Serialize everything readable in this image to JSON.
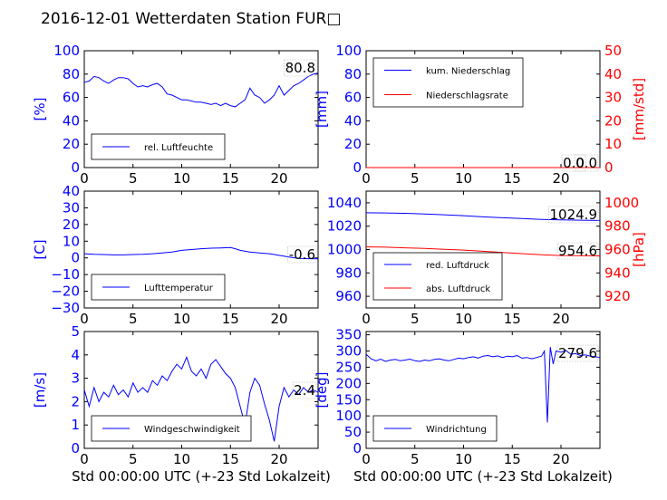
{
  "title": "2016-12-01 Wetterdaten Station FUR□",
  "colors": {
    "primary": "#0000ff",
    "secondary": "#ff0000",
    "axis": "#000000"
  },
  "chart_data": [
    {
      "type": "line",
      "panel": "humidity",
      "ylabel": "[%]",
      "xlim": [
        0,
        24
      ],
      "ylim": [
        0,
        100
      ],
      "xticks": [
        "0",
        "5",
        "10",
        "15",
        "20"
      ],
      "yticks": [
        "0",
        "20",
        "40",
        "60",
        "80",
        "100"
      ],
      "xtick_values": [
        0,
        5,
        10,
        15,
        20
      ],
      "ytick_values": [
        0,
        20,
        40,
        60,
        80,
        100
      ],
      "grid": false,
      "legend_position": "lower-left",
      "annotation": "80.8",
      "series": [
        {
          "name": "rel. Luftfeuchte",
          "axis": "left",
          "color": "#0000ff",
          "x": [
            0,
            0.5,
            1,
            1.5,
            2,
            2.5,
            3,
            3.5,
            4,
            4.5,
            5,
            5.5,
            6,
            6.5,
            7,
            7.5,
            8,
            8.5,
            9,
            9.5,
            10,
            10.5,
            11,
            11.5,
            12,
            12.5,
            13,
            13.5,
            14,
            14.5,
            15,
            15.5,
            16,
            16.5,
            17,
            17.5,
            18,
            18.5,
            19,
            19.5,
            20,
            20.5,
            21,
            21.5,
            22,
            22.5,
            23,
            23.5,
            24
          ],
          "values": [
            73,
            74,
            78,
            77,
            74,
            72,
            75,
            77,
            77,
            76,
            72,
            69,
            70,
            69,
            71,
            72,
            69,
            63,
            62,
            60,
            58,
            58,
            57,
            56,
            56,
            55,
            54,
            55,
            53,
            55,
            53,
            52,
            55,
            58,
            68,
            62,
            60,
            55,
            58,
            62,
            70,
            62,
            66,
            70,
            72,
            75,
            78,
            80,
            80.8
          ]
        }
      ]
    },
    {
      "type": "line",
      "panel": "precipitation",
      "ylabel": "[mm]",
      "ylabel_right": "[mm/std]",
      "xlim": [
        0,
        24
      ],
      "ylim": [
        0,
        100
      ],
      "ylim_right": [
        0,
        50
      ],
      "xticks": [
        "0",
        "5",
        "10",
        "15",
        "20"
      ],
      "yticks": [
        "0",
        "20",
        "40",
        "60",
        "80",
        "100"
      ],
      "yticks_right": [
        "0",
        "10",
        "20",
        "30",
        "40",
        "50"
      ],
      "xtick_values": [
        0,
        5,
        10,
        15,
        20
      ],
      "ytick_values": [
        0,
        20,
        40,
        60,
        80,
        100
      ],
      "ytick_values_right": [
        0,
        10,
        20,
        30,
        40,
        50
      ],
      "grid": false,
      "legend_position": "upper-left",
      "annotation": "0.0",
      "annotation_2": "0.0",
      "series": [
        {
          "name": "kum. Niederschlag",
          "axis": "left",
          "color": "#0000ff",
          "x": [
            0,
            24
          ],
          "values": [
            0,
            0
          ]
        },
        {
          "name": "Niederschlagsrate",
          "axis": "right",
          "color": "#ff0000",
          "x": [
            0,
            24
          ],
          "values": [
            0,
            0
          ]
        }
      ]
    },
    {
      "type": "line",
      "panel": "temperature",
      "ylabel": "[C]",
      "xlim": [
        0,
        24
      ],
      "ylim": [
        -30,
        40
      ],
      "xticks": [
        "0",
        "5",
        "10",
        "15",
        "20"
      ],
      "yticks": [
        "−30",
        "−20",
        "−10",
        "0",
        "10",
        "20",
        "30",
        "40"
      ],
      "xtick_values": [
        0,
        5,
        10,
        15,
        20
      ],
      "ytick_values": [
        -30,
        -20,
        -10,
        0,
        10,
        20,
        30,
        40
      ],
      "grid": false,
      "legend_position": "lower-left",
      "annotation": "-0.6",
      "series": [
        {
          "name": "Lufttemperatur",
          "axis": "left",
          "color": "#0000ff",
          "x": [
            0,
            1,
            2,
            3,
            4,
            5,
            6,
            7,
            8,
            9,
            10,
            11,
            12,
            13,
            14,
            15,
            15.5,
            16,
            17,
            18,
            19,
            20,
            21,
            22,
            23,
            24
          ],
          "values": [
            2.5,
            2.2,
            2.0,
            1.8,
            1.8,
            2.0,
            2.2,
            2.5,
            3.0,
            3.5,
            4.5,
            5.0,
            5.5,
            5.8,
            6.0,
            6.2,
            5.5,
            4.5,
            3.5,
            3.0,
            2.5,
            1.5,
            0.5,
            -0.3,
            -0.5,
            -0.6
          ]
        }
      ]
    },
    {
      "type": "line",
      "panel": "pressure",
      "ylabel_right": "[hPa]",
      "xlim": [
        0,
        24
      ],
      "ylim": [
        950,
        1050
      ],
      "ylim_right": [
        910,
        1010
      ],
      "xticks": [
        "0",
        "5",
        "10",
        "15",
        "20"
      ],
      "yticks": [
        "960",
        "980",
        "1000",
        "1020",
        "1040"
      ],
      "yticks_right": [
        "920",
        "940",
        "960",
        "980",
        "1000"
      ],
      "xtick_values": [
        0,
        5,
        10,
        15,
        20
      ],
      "ytick_values": [
        960,
        980,
        1000,
        1020,
        1040
      ],
      "ytick_values_right": [
        920,
        940,
        960,
        980,
        1000
      ],
      "grid": false,
      "legend_position": "lower-left",
      "annotation": "1024.9",
      "annotation_2": "954.6",
      "series": [
        {
          "name": "red. Luftdruck",
          "axis": "left",
          "color": "#0000ff",
          "x": [
            0,
            2,
            4,
            6,
            8,
            10,
            12,
            14,
            16,
            18,
            20,
            22,
            24
          ],
          "values": [
            1031.5,
            1031.3,
            1031.0,
            1030.5,
            1029.8,
            1029.0,
            1028.0,
            1027.2,
            1026.5,
            1025.8,
            1025.4,
            1025.1,
            1024.9
          ]
        },
        {
          "name": "abs. Luftdruck",
          "axis": "right",
          "color": "#ff0000",
          "x": [
            0,
            2,
            4,
            6,
            8,
            10,
            12,
            14,
            16,
            18,
            20,
            22,
            24
          ],
          "values": [
            962.3,
            962.0,
            961.5,
            961.0,
            960.2,
            959.5,
            958.5,
            957.5,
            956.5,
            955.5,
            954.9,
            954.7,
            954.6
          ]
        }
      ]
    },
    {
      "type": "line",
      "panel": "wind-speed",
      "ylabel": "[m/s]",
      "xlabel": "Std 00:00:00 UTC (+-23 Std Lokalzeit)",
      "xlim": [
        0,
        24
      ],
      "ylim": [
        0,
        5
      ],
      "xticks": [
        "0",
        "5",
        "10",
        "15",
        "20"
      ],
      "yticks": [
        "0",
        "1",
        "2",
        "3",
        "4",
        "5"
      ],
      "xtick_values": [
        0,
        5,
        10,
        15,
        20
      ],
      "ytick_values": [
        0,
        1,
        2,
        3,
        4,
        5
      ],
      "grid": false,
      "legend_position": "lower-left",
      "annotation": "2.4",
      "series": [
        {
          "name": "Windgeschwindigkeit",
          "axis": "left",
          "color": "#0000ff",
          "x": [
            0,
            0.5,
            1,
            1.5,
            2,
            2.5,
            3,
            3.5,
            4,
            4.5,
            5,
            5.5,
            6,
            6.5,
            7,
            7.5,
            8,
            8.5,
            9,
            9.5,
            10,
            10.5,
            11,
            11.5,
            12,
            12.5,
            13,
            13.5,
            14,
            14.5,
            15,
            15.5,
            16,
            16.5,
            17,
            17.5,
            18,
            18.5,
            19,
            19.5,
            20,
            20.5,
            21,
            21.5,
            22,
            22.5,
            23,
            23.5,
            24
          ],
          "values": [
            2.5,
            1.8,
            2.6,
            2.0,
            2.4,
            2.2,
            2.7,
            2.3,
            2.5,
            2.2,
            2.8,
            2.4,
            2.6,
            2.4,
            2.9,
            2.7,
            3.1,
            2.9,
            3.3,
            3.6,
            3.4,
            3.9,
            3.3,
            3.1,
            3.4,
            3.0,
            3.6,
            3.8,
            3.5,
            3.2,
            3.0,
            2.6,
            1.8,
            1.0,
            2.4,
            3.0,
            2.7,
            1.9,
            1.2,
            0.3,
            1.8,
            2.6,
            2.2,
            2.5,
            2.3,
            2.6,
            2.4,
            2.5,
            2.4
          ]
        }
      ]
    },
    {
      "type": "line",
      "panel": "wind-direction",
      "ylabel": "[deg]",
      "xlabel": "Std 00:00:00 UTC (+-23 Std Lokalzeit)",
      "xlim": [
        0,
        24
      ],
      "ylim": [
        0,
        360
      ],
      "xticks": [
        "0",
        "5",
        "10",
        "15",
        "20"
      ],
      "yticks": [
        "0",
        "50",
        "100",
        "150",
        "200",
        "250",
        "300",
        "350"
      ],
      "xtick_values": [
        0,
        5,
        10,
        15,
        20
      ],
      "ytick_values": [
        0,
        50,
        100,
        150,
        200,
        250,
        300,
        350
      ],
      "grid": false,
      "legend_position": "lower-left",
      "annotation": "279.6",
      "series": [
        {
          "name": "Windrichtung",
          "axis": "left",
          "color": "#0000ff",
          "x": [
            0,
            0.5,
            1,
            1.5,
            2,
            2.5,
            3,
            3.5,
            4,
            4.5,
            5,
            5.5,
            6,
            6.5,
            7,
            7.5,
            8,
            8.5,
            9,
            9.5,
            10,
            10.5,
            11,
            11.5,
            12,
            12.5,
            13,
            13.5,
            14,
            14.5,
            15,
            15.5,
            16,
            16.5,
            17,
            17.5,
            18,
            18.3,
            18.6,
            18.9,
            19.2,
            19.5,
            20,
            20.5,
            21,
            21.5,
            22,
            22.5,
            23,
            23.5,
            24
          ],
          "values": [
            290,
            276,
            270,
            275,
            268,
            272,
            274,
            270,
            272,
            275,
            270,
            268,
            272,
            270,
            274,
            276,
            272,
            270,
            274,
            278,
            276,
            280,
            282,
            278,
            284,
            286,
            282,
            285,
            280,
            284,
            282,
            286,
            278,
            280,
            276,
            280,
            284,
            300,
            80,
            312,
            260,
            300,
            296,
            302,
            290,
            292,
            286,
            288,
            284,
            282,
            279.6
          ]
        }
      ]
    }
  ]
}
